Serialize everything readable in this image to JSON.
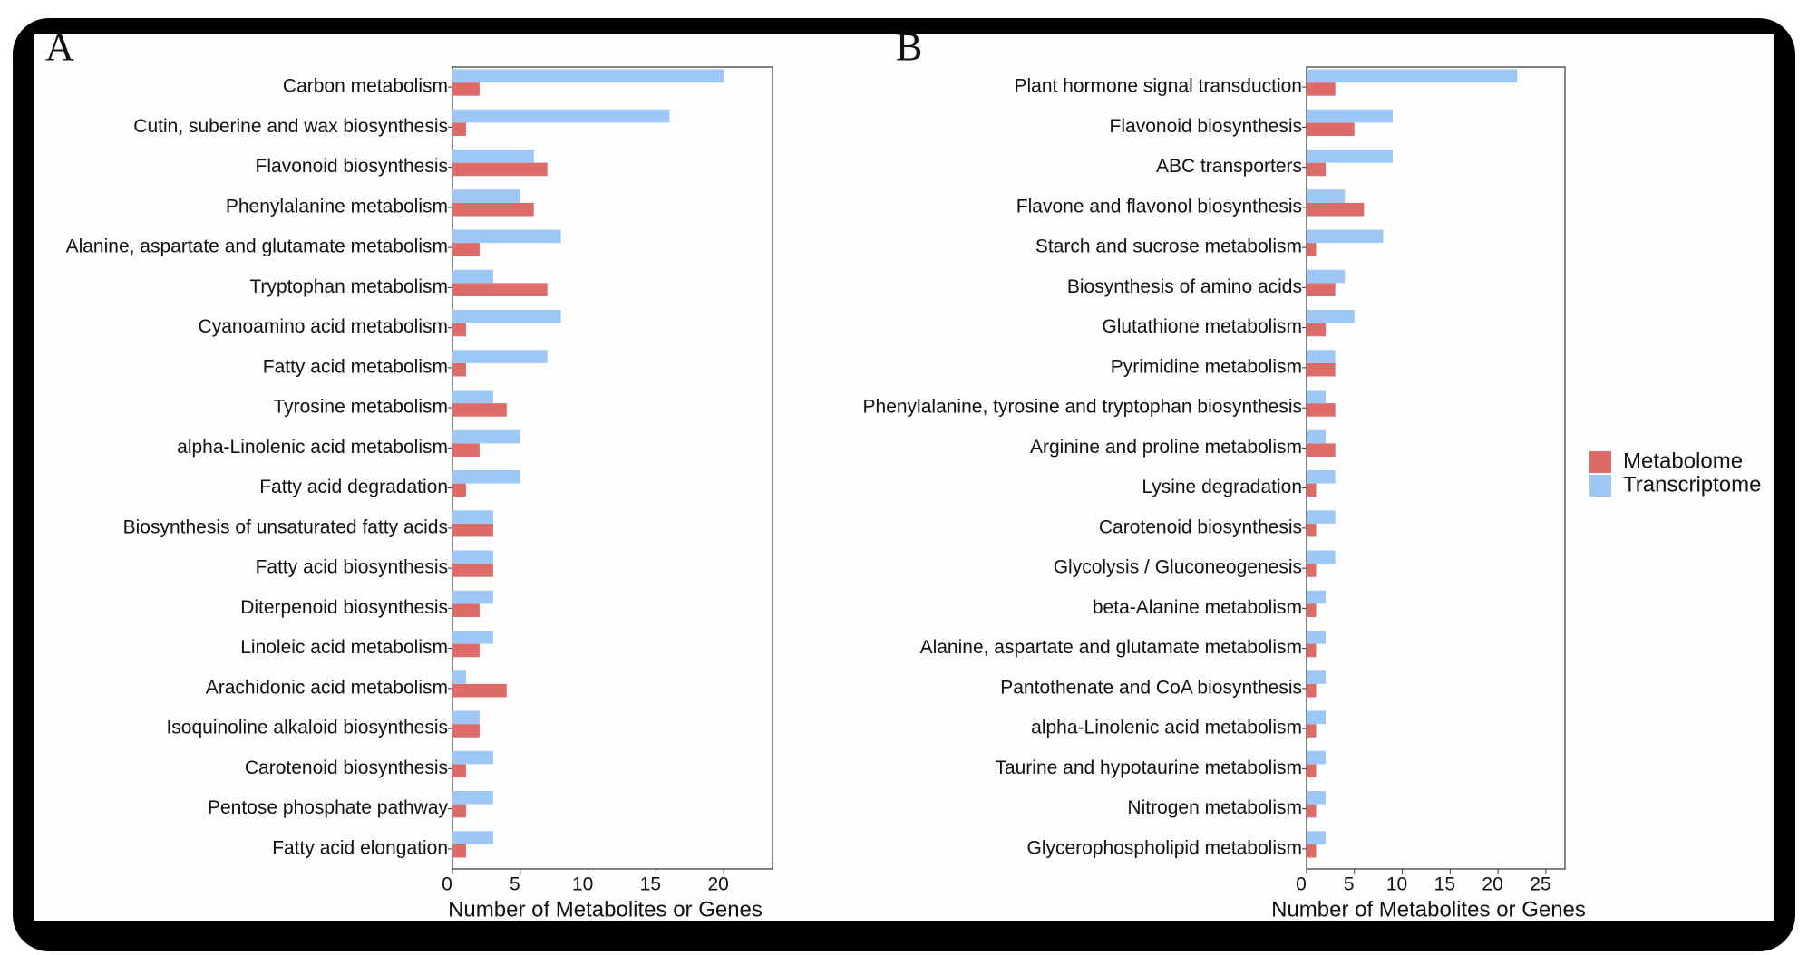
{
  "chart_data": [
    {
      "type": "bar",
      "orientation": "horizontal",
      "label": "A",
      "xlabel": "Number of Metabolites or Genes",
      "categories": [
        "Carbon metabolism",
        "Cutin, suberine and wax biosynthesis",
        "Flavonoid biosynthesis",
        "Phenylalanine metabolism",
        "Alanine, aspartate and glutamate metabolism",
        "Tryptophan metabolism",
        "Cyanoamino acid metabolism",
        "Fatty acid metabolism",
        "Tyrosine metabolism",
        "alpha-Linolenic acid metabolism",
        "Fatty acid degradation",
        "Biosynthesis of unsaturated fatty acids",
        "Fatty acid biosynthesis",
        "Diterpenoid biosynthesis",
        "Linoleic acid metabolism",
        "Arachidonic acid metabolism",
        "Isoquinoline alkaloid biosynthesis",
        "Carotenoid biosynthesis",
        "Pentose phosphate pathway",
        "Fatty acid elongation"
      ],
      "series": [
        {
          "name": "Metabolome",
          "color": "#dd6b68",
          "values": [
            2,
            1,
            7,
            6,
            2,
            7,
            1,
            1,
            4,
            2,
            1,
            3,
            3,
            2,
            2,
            4,
            2,
            1,
            1,
            1
          ]
        },
        {
          "name": "Transcriptome",
          "color": "#9dc8f6",
          "values": [
            20,
            16,
            6,
            5,
            8,
            3,
            8,
            7,
            3,
            5,
            5,
            3,
            3,
            3,
            3,
            1,
            2,
            3,
            3,
            3
          ]
        }
      ],
      "xlim": [
        0,
        23.6
      ],
      "xticks": [
        0,
        5,
        10,
        15,
        20
      ]
    },
    {
      "type": "bar",
      "orientation": "horizontal",
      "label": "B",
      "xlabel": "Number of Metabolites or Genes",
      "categories": [
        "Plant hormone signal transduction",
        "Flavonoid biosynthesis",
        "ABC transporters",
        "Flavone and flavonol biosynthesis",
        "Starch and sucrose metabolism",
        "Biosynthesis of amino acids",
        "Glutathione metabolism",
        "Pyrimidine metabolism",
        "Phenylalanine, tyrosine and tryptophan biosynthesis",
        "Arginine and proline metabolism",
        "Lysine degradation",
        "Carotenoid biosynthesis",
        "Glycolysis / Gluconeogenesis",
        "beta-Alanine metabolism",
        "Alanine, aspartate and glutamate metabolism",
        "Pantothenate and CoA biosynthesis",
        "alpha-Linolenic acid metabolism",
        "Taurine and hypotaurine metabolism",
        "Nitrogen metabolism",
        "Glycerophospholipid metabolism"
      ],
      "series": [
        {
          "name": "Metabolome",
          "color": "#dd6b68",
          "values": [
            3,
            5,
            2,
            6,
            1,
            3,
            2,
            3,
            3,
            3,
            1,
            1,
            1,
            1,
            1,
            1,
            1,
            1,
            1,
            1
          ]
        },
        {
          "name": "Transcriptome",
          "color": "#9dc8f6",
          "values": [
            22,
            9,
            9,
            4,
            8,
            4,
            5,
            3,
            2,
            2,
            3,
            3,
            3,
            2,
            2,
            2,
            2,
            2,
            2,
            2
          ]
        }
      ],
      "xlim": [
        0,
        27
      ],
      "xticks": [
        0,
        5,
        10,
        15,
        20,
        25
      ]
    }
  ]
}
